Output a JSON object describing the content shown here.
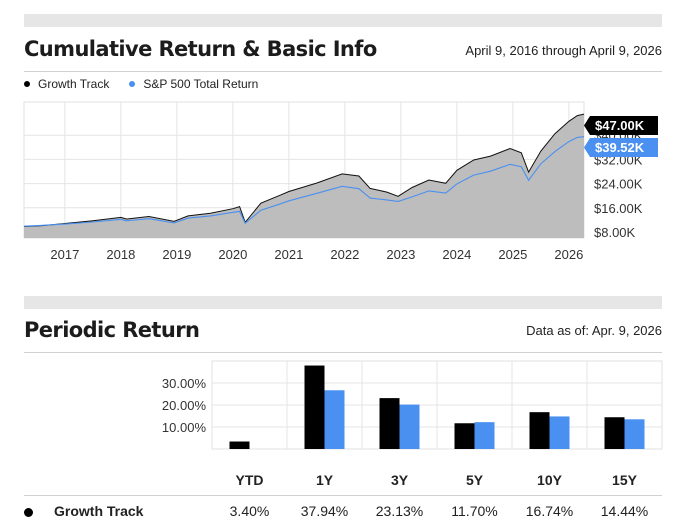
{
  "cumulative": {
    "title": "Cumulative Return & Basic Info",
    "date_range": "April 9, 2016 through April 9, 2026",
    "legend": [
      {
        "name": "Growth Track",
        "color": "#000000"
      },
      {
        "name": "S&P 500 Total Return",
        "color": "#4a90f0"
      }
    ],
    "end_label_growth": "$47.00K",
    "end_label_sp": "$39.52K",
    "chart_data": {
      "type": "area",
      "x": [
        2016.27,
        2016.6,
        2017.0,
        2017.5,
        2018.0,
        2018.1,
        2018.5,
        2018.95,
        2019.2,
        2019.6,
        2020.0,
        2020.12,
        2020.22,
        2020.5,
        2020.85,
        2021.0,
        2021.5,
        2021.95,
        2022.25,
        2022.45,
        2022.75,
        2022.95,
        2023.2,
        2023.5,
        2023.8,
        2024.0,
        2024.3,
        2024.6,
        2024.95,
        2025.15,
        2025.28,
        2025.5,
        2025.75,
        2026.0,
        2026.15,
        2026.27
      ],
      "series": [
        {
          "name": "Growth Track",
          "values": [
            9.8,
            10.1,
            10.8,
            11.7,
            12.8,
            12.3,
            13.1,
            11.5,
            13.3,
            14.2,
            15.7,
            16.4,
            11.2,
            17.5,
            20.2,
            21.4,
            24.2,
            27.2,
            26.5,
            22.4,
            21.2,
            19.8,
            22.7,
            25.2,
            24.1,
            28.4,
            31.8,
            33.1,
            35.6,
            34.2,
            27.8,
            34.8,
            40.5,
            44.6,
            46.5,
            47.0
          ]
        },
        {
          "name": "S&P 500 Total Return",
          "values": [
            9.9,
            10.2,
            10.6,
            11.3,
            12.2,
            11.7,
            12.4,
            11.0,
            12.6,
            13.3,
            14.5,
            14.8,
            10.9,
            15.2,
            17.3,
            18.3,
            20.8,
            23.1,
            22.3,
            19.2,
            18.6,
            18.1,
            19.6,
            21.6,
            20.9,
            23.9,
            26.8,
            28.1,
            30.4,
            29.6,
            25.1,
            30.6,
            34.6,
            37.9,
            39.3,
            39.52
          ]
        }
      ],
      "y_ticks": [
        "$8.00K",
        "$16.00K",
        "$24.00K",
        "$32.00K",
        "$40.00K"
      ],
      "y_tick_values": [
        8,
        16,
        24,
        32,
        40
      ],
      "x_ticks": [
        "2017",
        "2018",
        "2019",
        "2020",
        "2021",
        "2022",
        "2023",
        "2024",
        "2025",
        "2026"
      ],
      "x_tick_values": [
        2017,
        2018,
        2019,
        2020,
        2021,
        2022,
        2023,
        2024,
        2025,
        2026
      ],
      "xlim": [
        2016.27,
        2026.27
      ],
      "ylim": [
        6,
        51
      ],
      "grid": true
    }
  },
  "periodic": {
    "title": "Periodic Return",
    "as_of": "Data as of: Apr. 9, 2026",
    "chart_data": {
      "type": "bar",
      "categories": [
        "YTD",
        "1Y",
        "3Y",
        "5Y",
        "10Y",
        "15Y"
      ],
      "series": [
        {
          "name": "Growth Track",
          "color": "#000000",
          "values": [
            3.4,
            37.94,
            23.13,
            11.7,
            16.74,
            14.44
          ]
        },
        {
          "name": "S&P 500 Total Return",
          "color": "#4a90f0",
          "values": [
            null,
            26.7,
            20.2,
            12.2,
            14.8,
            13.5
          ]
        }
      ],
      "y_ticks": [
        "10.00%",
        "20.00%",
        "30.00%"
      ],
      "y_tick_values": [
        10,
        20,
        30
      ],
      "ylim": [
        0,
        40
      ],
      "grid": true
    },
    "table": {
      "headers": [
        "YTD",
        "1Y",
        "3Y",
        "5Y",
        "10Y",
        "15Y"
      ],
      "rows": [
        {
          "name": "Growth Track",
          "values": [
            "3.40%",
            "37.94%",
            "23.13%",
            "11.70%",
            "16.74%",
            "14.44%"
          ]
        }
      ]
    }
  }
}
